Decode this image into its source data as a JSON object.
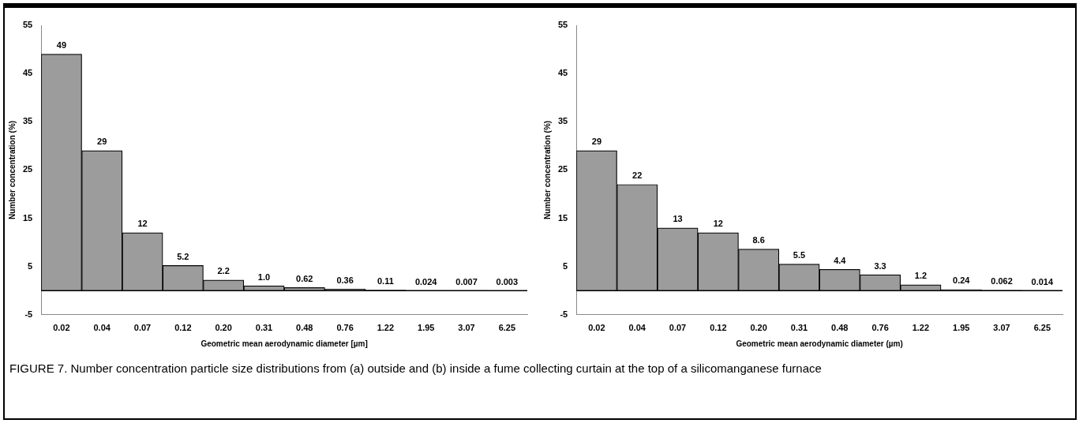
{
  "chart_data": [
    {
      "type": "bar",
      "xlabel": "Geometric mean aerodynamic diameter [µm]",
      "ylabel": "Number concentration (%)",
      "categories": [
        "0.02",
        "0.04",
        "0.07",
        "0.12",
        "0.20",
        "0.31",
        "0.48",
        "0.76",
        "1.22",
        "1.95",
        "3.07",
        "6.25"
      ],
      "values": [
        49,
        29,
        12,
        5.2,
        2.2,
        1.0,
        0.62,
        0.36,
        0.11,
        0.024,
        0.007,
        0.003
      ],
      "value_labels": [
        "49",
        "29",
        "12",
        "5.2",
        "2.2",
        "1.0",
        "0.62",
        "0.36",
        "0.11",
        "0.024",
        "0.007",
        "0.003"
      ],
      "color": "#9c9c9c",
      "ylim": [
        -5,
        55
      ],
      "yticks": [
        -5,
        5,
        15,
        25,
        35,
        45,
        55
      ],
      "grid": false,
      "legend": false,
      "ref_lines": [
        {
          "axis": "y",
          "value": 0,
          "color": "#000000"
        }
      ]
    },
    {
      "type": "bar",
      "xlabel": "Geometric mean aerodynamic diameter (µm)",
      "ylabel": "Number concentration (%)",
      "categories": [
        "0.02",
        "0.04",
        "0.07",
        "0.12",
        "0.20",
        "0.31",
        "0.48",
        "0.76",
        "1.22",
        "1.95",
        "3.07",
        "6.25"
      ],
      "values": [
        29,
        22,
        13,
        12,
        8.6,
        5.5,
        4.4,
        3.3,
        1.2,
        0.24,
        0.062,
        0.014
      ],
      "value_labels": [
        "29",
        "22",
        "13",
        "12",
        "8.6",
        "5.5",
        "4.4",
        "3.3",
        "1.2",
        "0.24",
        "0.062",
        "0.014"
      ],
      "color": "#9c9c9c",
      "ylim": [
        -5,
        55
      ],
      "yticks": [
        -5,
        5,
        15,
        25,
        35,
        45,
        55
      ],
      "grid": false,
      "legend": false,
      "ref_lines": [
        {
          "axis": "y",
          "value": 0,
          "color": "#000000"
        }
      ],
      "annotations": [
        "FIGURE 7.  Number concentration particle size distributions from (a) outside and (b) inside a fume collecting curtain at the top of a silicomanganese furnace"
      ]
    }
  ]
}
